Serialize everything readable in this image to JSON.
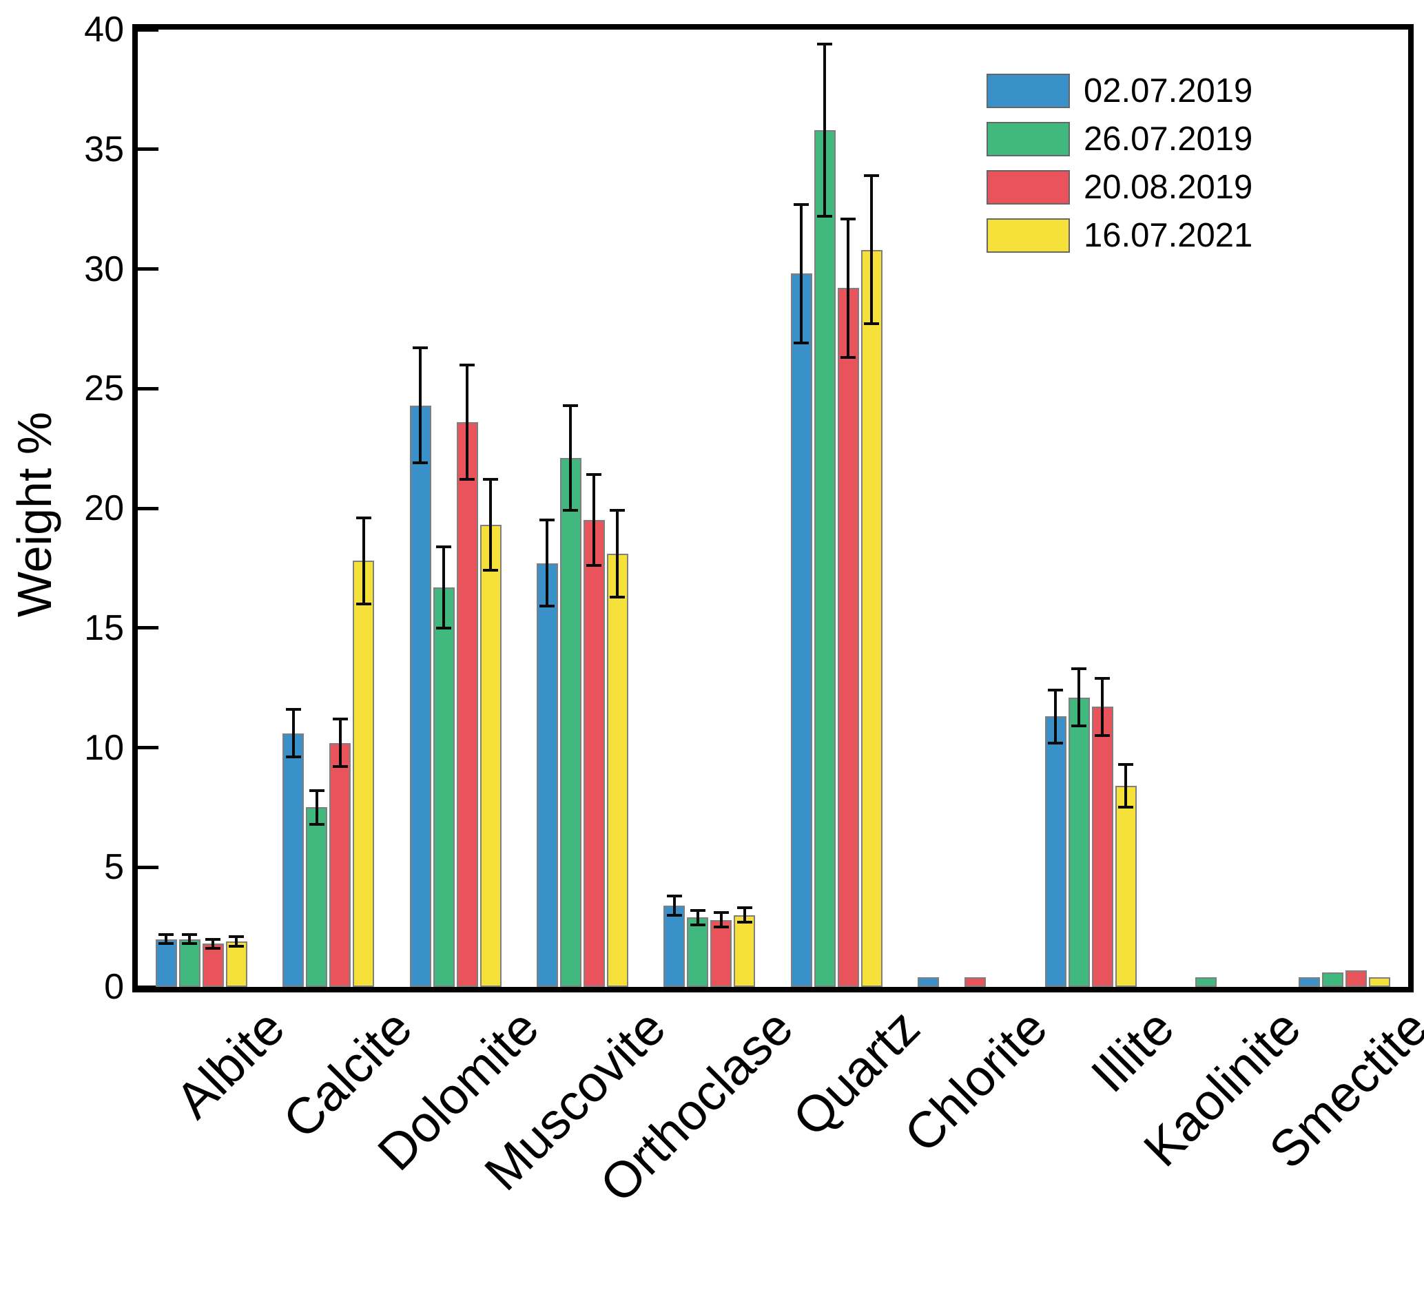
{
  "chart_data": {
    "type": "bar",
    "title": "",
    "xlabel": "",
    "ylabel": "Weight %",
    "ylim": [
      0,
      40
    ],
    "yticks": [
      0,
      5,
      10,
      15,
      20,
      25,
      30,
      35,
      40
    ],
    "grid": false,
    "legend_position": "upper right",
    "bar_edge_color": "#7f7f7f",
    "error_bar_color": "#0a0a0a",
    "categories": [
      "Albite",
      "Calcite",
      "Dolomite",
      "Muscovite",
      "Orthoclase",
      "Quartz",
      "Chlorite",
      "Illite",
      "Kaolinite",
      "Smectite"
    ],
    "series": [
      {
        "name": "02.07.2019",
        "color": "#3a90c9",
        "values": [
          2.0,
          10.6,
          24.3,
          17.7,
          3.4,
          29.8,
          0.4,
          11.3,
          0,
          0.4
        ],
        "errors": [
          0.2,
          1.0,
          2.4,
          1.8,
          0.4,
          2.9,
          0,
          1.1,
          0,
          0
        ]
      },
      {
        "name": "26.07.2019",
        "color": "#41b87d",
        "values": [
          2.0,
          7.5,
          16.7,
          22.1,
          2.9,
          35.8,
          0,
          12.1,
          0.4,
          0.6
        ],
        "errors": [
          0.2,
          0.7,
          1.7,
          2.2,
          0.3,
          3.6,
          0,
          1.2,
          0,
          0
        ]
      },
      {
        "name": "20.08.2019",
        "color": "#e9545c",
        "values": [
          1.8,
          10.2,
          23.6,
          19.5,
          2.8,
          29.2,
          0.4,
          11.7,
          0,
          0.7
        ],
        "errors": [
          0.2,
          1.0,
          2.4,
          1.9,
          0.3,
          2.9,
          0,
          1.2,
          0,
          0
        ]
      },
      {
        "name": "16.07.2021",
        "color": "#f6e13b",
        "values": [
          1.9,
          17.8,
          19.3,
          18.1,
          3.0,
          30.8,
          0,
          8.4,
          0,
          0.4
        ],
        "errors": [
          0.2,
          1.8,
          1.9,
          1.8,
          0.3,
          3.1,
          0,
          0.9,
          0,
          0
        ]
      }
    ]
  }
}
